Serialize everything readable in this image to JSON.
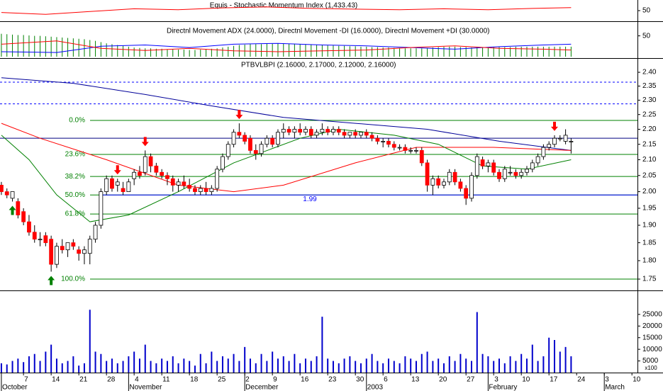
{
  "chart_data": {
    "type": "candlestick",
    "title": "PTBVLBPI (2.16000, 2.17000, 2.12000, 2.16000)",
    "log_scale": true,
    "xlim": [
      -0.25,
      115
    ],
    "xticks": [
      {
        "value": 4,
        "label": "7"
      },
      {
        "value": 9,
        "label": "14"
      },
      {
        "value": 14,
        "label": "21"
      },
      {
        "value": 19,
        "label": "28"
      },
      {
        "value": 24,
        "label": "4"
      },
      {
        "value": 29,
        "label": "11"
      },
      {
        "value": 34,
        "label": "18"
      },
      {
        "value": 39,
        "label": "25"
      },
      {
        "value": 44,
        "label": "2"
      },
      {
        "value": 49,
        "label": "9"
      },
      {
        "value": 54,
        "label": "16"
      },
      {
        "value": 59,
        "label": "23"
      },
      {
        "value": 64,
        "label": "30"
      },
      {
        "value": 69,
        "label": "6"
      },
      {
        "value": 74,
        "label": "13"
      },
      {
        "value": 79,
        "label": "20"
      },
      {
        "value": 84,
        "label": "27"
      },
      {
        "value": 89,
        "label": "3"
      },
      {
        "value": 94,
        "label": "10"
      },
      {
        "value": 99,
        "label": "17"
      },
      {
        "value": 104,
        "label": "24"
      },
      {
        "value": 109,
        "label": "3"
      },
      {
        "value": 114,
        "label": "10"
      }
    ],
    "months": [
      {
        "value": 0,
        "label": "October"
      },
      {
        "value": 23,
        "label": "November"
      },
      {
        "value": 44,
        "label": "December"
      },
      {
        "value": 66,
        "label": "2003"
      },
      {
        "value": 88,
        "label": "February"
      },
      {
        "value": 109,
        "label": "March"
      }
    ],
    "ylim": [
      1.72,
      2.45
    ],
    "yticks": [
      {
        "value": 2.4,
        "label": "2.40"
      },
      {
        "value": 2.35,
        "label": "2.35"
      },
      {
        "value": 2.3,
        "label": "2.30"
      },
      {
        "value": 2.25,
        "label": "2.25"
      },
      {
        "value": 2.2,
        "label": "2.20"
      },
      {
        "value": 2.15,
        "label": "2.15"
      },
      {
        "value": 2.1,
        "label": "2.10"
      },
      {
        "value": 2.05,
        "label": "2.05"
      },
      {
        "value": 2.0,
        "label": "2.00"
      },
      {
        "value": 1.95,
        "label": "1.95"
      },
      {
        "value": 1.9,
        "label": "1.90"
      },
      {
        "value": 1.85,
        "label": "1.85"
      },
      {
        "value": 1.8,
        "label": "1.80"
      },
      {
        "value": 1.75,
        "label": "1.75"
      }
    ],
    "up_color": "#ffffff",
    "down_color": "#ff0000",
    "open": [
      2.02,
      2.0,
      1.98,
      1.97,
      1.94,
      1.91,
      1.88,
      1.86,
      1.87,
      1.86,
      1.79,
      1.84,
      1.83,
      1.85,
      1.83,
      1.82,
      1.82,
      1.86,
      1.9,
      2.0,
      2.04,
      2.02,
      2.01,
      2.0,
      2.04,
      2.06,
      2.06,
      2.11,
      2.08,
      2.06,
      2.05,
      2.04,
      2.02,
      2.03,
      2.02,
      2.01,
      2.0,
      2.01,
      2.0,
      2.01,
      2.07,
      2.11,
      2.15,
      2.19,
      2.18,
      2.17,
      2.13,
      2.12,
      2.15,
      2.17,
      2.15,
      2.19,
      2.2,
      2.19,
      2.2,
      2.19,
      2.2,
      2.18,
      2.19,
      2.2,
      2.19,
      2.2,
      2.19,
      2.18,
      2.19,
      2.18,
      2.19,
      2.18,
      2.17,
      2.16,
      2.16,
      2.15,
      2.14,
      2.14,
      2.13,
      2.13,
      2.13,
      2.09,
      2.02,
      2.04,
      2.02,
      2.03,
      2.06,
      2.03,
      2.01,
      1.98,
      2.05,
      2.1,
      2.08,
      2.09,
      2.06,
      2.04,
      2.06,
      2.06,
      2.05,
      2.06,
      2.07,
      2.09,
      2.11,
      2.14,
      2.15,
      2.17,
      2.16,
      2.16
    ],
    "high": [
      2.03,
      2.01,
      2.0,
      1.98,
      1.95,
      1.93,
      1.9,
      1.88,
      1.88,
      1.87,
      1.85,
      1.86,
      1.85,
      1.86,
      1.84,
      1.84,
      1.87,
      1.91,
      2.01,
      2.05,
      2.05,
      2.04,
      2.03,
      2.04,
      2.07,
      2.08,
      2.13,
      2.12,
      2.09,
      2.07,
      2.06,
      2.05,
      2.04,
      2.05,
      2.04,
      2.02,
      2.02,
      2.03,
      2.02,
      2.08,
      2.12,
      2.16,
      2.2,
      2.22,
      2.19,
      2.18,
      2.15,
      2.16,
      2.18,
      2.18,
      2.2,
      2.22,
      2.21,
      2.21,
      2.22,
      2.21,
      2.21,
      2.2,
      2.22,
      2.21,
      2.21,
      2.21,
      2.2,
      2.19,
      2.2,
      2.19,
      2.2,
      2.19,
      2.18,
      2.17,
      2.17,
      2.16,
      2.15,
      2.15,
      2.14,
      2.14,
      2.14,
      2.1,
      2.05,
      2.05,
      2.04,
      2.07,
      2.07,
      2.04,
      2.02,
      2.06,
      2.12,
      2.11,
      2.1,
      2.1,
      2.07,
      2.08,
      2.08,
      2.07,
      2.07,
      2.08,
      2.1,
      2.12,
      2.15,
      2.16,
      2.18,
      2.18,
      2.2,
      2.17
    ],
    "low": [
      1.99,
      1.98,
      1.97,
      1.92,
      1.9,
      1.87,
      1.85,
      1.84,
      1.84,
      1.77,
      1.78,
      1.82,
      1.81,
      1.83,
      1.8,
      1.79,
      1.79,
      1.85,
      1.89,
      1.99,
      2.0,
      2.0,
      1.99,
      2.0,
      2.02,
      2.04,
      2.05,
      2.06,
      2.05,
      2.04,
      2.02,
      2.0,
      2.0,
      2.01,
      2.0,
      1.99,
      1.99,
      1.99,
      1.99,
      2.0,
      2.06,
      2.1,
      2.14,
      2.17,
      2.15,
      2.12,
      2.1,
      2.11,
      2.14,
      2.14,
      2.14,
      2.17,
      2.18,
      2.17,
      2.18,
      2.18,
      2.17,
      2.17,
      2.18,
      2.18,
      2.18,
      2.18,
      2.17,
      2.17,
      2.17,
      2.17,
      2.17,
      2.16,
      2.15,
      2.14,
      2.14,
      2.13,
      2.13,
      2.12,
      2.12,
      2.12,
      2.08,
      2.0,
      1.99,
      2.01,
      2.01,
      2.02,
      2.02,
      2.0,
      1.96,
      1.97,
      2.04,
      2.07,
      2.06,
      2.05,
      2.03,
      2.03,
      2.05,
      2.04,
      2.04,
      2.05,
      2.06,
      2.08,
      2.1,
      2.13,
      2.14,
      2.16,
      2.15,
      2.12
    ],
    "close": [
      2.0,
      1.99,
      2.0,
      1.93,
      1.91,
      1.88,
      1.86,
      1.86,
      1.85,
      1.79,
      1.84,
      1.83,
      1.85,
      1.84,
      1.82,
      1.83,
      1.86,
      1.9,
      2.0,
      2.04,
      2.01,
      2.03,
      2.0,
      2.03,
      2.06,
      2.05,
      2.11,
      2.08,
      2.06,
      2.05,
      2.04,
      2.02,
      2.03,
      2.02,
      2.01,
      2.0,
      2.01,
      2.0,
      2.01,
      2.07,
      2.11,
      2.15,
      2.19,
      2.18,
      2.16,
      2.13,
      2.12,
      2.15,
      2.17,
      2.15,
      2.19,
      2.2,
      2.19,
      2.2,
      2.19,
      2.2,
      2.18,
      2.19,
      2.2,
      2.19,
      2.2,
      2.19,
      2.18,
      2.19,
      2.18,
      2.19,
      2.18,
      2.17,
      2.16,
      2.16,
      2.15,
      2.14,
      2.14,
      2.13,
      2.13,
      2.13,
      2.09,
      2.02,
      2.04,
      2.02,
      2.03,
      2.06,
      2.03,
      2.01,
      1.98,
      2.05,
      2.11,
      2.08,
      2.09,
      2.06,
      2.04,
      2.07,
      2.06,
      2.05,
      2.06,
      2.07,
      2.09,
      2.11,
      2.14,
      2.15,
      2.17,
      2.17,
      2.18,
      2.16
    ],
    "moving_averages": [
      {
        "color": "#000099",
        "x": [
          0,
          13,
          26,
          38,
          51,
          64,
          77,
          90,
          103
        ],
        "values": [
          2.38,
          2.36,
          2.32,
          2.28,
          2.24,
          2.22,
          2.2,
          2.16,
          2.13
        ]
      },
      {
        "color": "#ff0000",
        "x": [
          0,
          7,
          19,
          32,
          42,
          51,
          64,
          75,
          89,
          103
        ],
        "values": [
          2.22,
          2.17,
          2.1,
          2.02,
          2.0,
          2.02,
          2.09,
          2.14,
          2.14,
          2.13
        ]
      },
      {
        "color": "#008000",
        "x": [
          0,
          5,
          10,
          16,
          23,
          32,
          42,
          54,
          61,
          71,
          79,
          87,
          95,
          103
        ],
        "values": [
          2.18,
          2.1,
          1.99,
          1.91,
          1.93,
          2.0,
          2.09,
          2.17,
          2.2,
          2.18,
          2.15,
          2.08,
          2.07,
          2.1
        ]
      }
    ],
    "fib_color": "#008000",
    "fib_levels": [
      {
        "label": "0.0%",
        "value": 2.23
      },
      {
        "label": "23.6%",
        "value": 2.117
      },
      {
        "label": "38.2%",
        "value": 2.047
      },
      {
        "label": "50.0%",
        "value": 1.99
      },
      {
        "label": "61.8%",
        "value": 1.933
      },
      {
        "label": "100.0%",
        "value": 1.75
      }
    ],
    "hlines": [
      {
        "value": 2.364,
        "color": "#0000ff",
        "dashed": true
      },
      {
        "value": 2.287,
        "color": "#0000ff",
        "dashed": true
      },
      {
        "value": 2.17,
        "color": "#000080",
        "dashed": false
      }
    ],
    "annotation": {
      "text": "1.99",
      "value": 1.99,
      "color": "#0000ff"
    },
    "buy_signals": [
      2,
      9
    ],
    "sell_signals": [
      21,
      26,
      43,
      100
    ],
    "buy_color": "#008000",
    "sell_color": "#ff0000",
    "volume": {
      "color": "#0000cc",
      "unit_label": "x100",
      "ylim": [
        0,
        35000
      ],
      "yticks": [
        5000,
        10000,
        15000,
        20000,
        25000
      ],
      "values": [
        4000,
        3500,
        5000,
        6000,
        4500,
        7000,
        8000,
        5000,
        9000,
        12000,
        6000,
        4000,
        5000,
        7000,
        3000,
        4000,
        27000,
        9000,
        8000,
        5000,
        6000,
        4000,
        5000,
        7000,
        9000,
        6000,
        12000,
        5000,
        4000,
        6000,
        5000,
        7000,
        4000,
        6000,
        5000,
        3000,
        8000,
        4000,
        9000,
        5000,
        7000,
        6000,
        8000,
        5000,
        11000,
        6000,
        4000,
        8000,
        5000,
        9000,
        6000,
        7000,
        5000,
        8000,
        4000,
        6000,
        5000,
        7000,
        24000,
        6000,
        5000,
        4000,
        6000,
        7000,
        5000,
        4000,
        6000,
        8000,
        5000,
        4000,
        6000,
        5000,
        4000,
        7000,
        6000,
        5000,
        8000,
        9000,
        5000,
        6000,
        4000,
        7000,
        5000,
        8000,
        6000,
        5000,
        26000,
        8000,
        7000,
        5000,
        6000,
        4000,
        7000,
        5000,
        8000,
        6000,
        12000,
        5000,
        7000,
        15000,
        14000,
        9000,
        11000,
        7000
      ]
    },
    "stochastic": {
      "title": "Equis - Stochastic Momentum Index (1,433.43)",
      "ylim": [
        0,
        100
      ],
      "yticks": [
        50
      ],
      "series": [
        {
          "color": "#ff0000",
          "x": [
            0,
            8,
            16,
            24,
            32,
            40,
            48,
            56,
            64,
            72,
            80,
            88,
            96,
            103
          ],
          "values": [
            40,
            30,
            45,
            60,
            55,
            65,
            70,
            62,
            58,
            55,
            60,
            55,
            62,
            66
          ]
        }
      ]
    },
    "dmi": {
      "title": "Directnl Movement ADX (24.0000), Directnl Movement -DI (16.0000), Directnl Movement +DI (30.0000)",
      "ylim": [
        0,
        80
      ],
      "yticks": [
        50
      ],
      "adx": {
        "color": "#008000",
        "values": [
          55,
          54,
          53,
          52,
          52,
          51,
          50,
          50,
          49,
          48,
          47,
          46,
          45,
          44,
          43,
          42,
          40,
          38,
          35,
          32,
          30,
          28,
          26,
          24,
          22,
          21,
          20,
          20,
          19,
          19,
          18,
          18,
          17,
          17,
          16,
          16,
          17,
          18,
          19,
          20,
          22,
          24,
          26,
          28,
          29,
          30,
          30,
          30,
          31,
          31,
          32,
          32,
          31,
          31,
          30,
          30,
          29,
          28,
          28,
          27,
          27,
          26,
          26,
          25,
          25,
          24,
          24,
          23,
          23,
          22,
          22,
          21,
          21,
          20,
          20,
          20,
          20,
          21,
          22,
          23,
          24,
          24,
          24,
          23,
          23,
          22,
          22,
          22,
          22,
          23,
          23,
          23,
          23,
          24,
          24,
          24,
          24,
          24,
          24,
          24,
          24,
          24,
          24,
          24
        ]
      },
      "series": [
        {
          "color": "#0000ff",
          "x": [
            0,
            10,
            18,
            26,
            34,
            42,
            50,
            58,
            66,
            74,
            82,
            90,
            98,
            103
          ],
          "values": [
            12,
            10,
            25,
            28,
            22,
            30,
            32,
            28,
            26,
            22,
            18,
            24,
            28,
            30
          ]
        },
        {
          "color": "#ff0000",
          "x": [
            0,
            10,
            18,
            26,
            34,
            42,
            50,
            58,
            66,
            74,
            82,
            90,
            98,
            103
          ],
          "values": [
            30,
            38,
            20,
            15,
            20,
            14,
            12,
            14,
            16,
            22,
            26,
            20,
            18,
            16
          ]
        }
      ]
    }
  }
}
